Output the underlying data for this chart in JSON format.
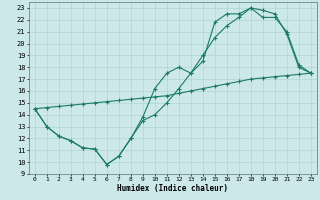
{
  "title": "",
  "xlabel": "Humidex (Indice chaleur)",
  "bg_color": "#cce8e8",
  "line_color": "#1a7a6a",
  "grid_color": "#a8d0d0",
  "xlim": [
    -0.5,
    23.5
  ],
  "ylim": [
    9,
    23.5
  ],
  "xticks": [
    0,
    1,
    2,
    3,
    4,
    5,
    6,
    7,
    8,
    9,
    10,
    11,
    12,
    13,
    14,
    15,
    16,
    17,
    18,
    19,
    20,
    21,
    22,
    23
  ],
  "yticks": [
    9,
    10,
    11,
    12,
    13,
    14,
    15,
    16,
    17,
    18,
    19,
    20,
    21,
    22,
    23
  ],
  "line1_x": [
    0,
    1,
    2,
    3,
    4,
    5,
    6,
    7,
    8,
    9,
    10,
    11,
    12,
    13,
    14,
    15,
    16,
    17,
    18,
    19,
    20,
    21,
    22,
    23
  ],
  "line1_y": [
    14.5,
    13.0,
    12.2,
    11.8,
    11.2,
    11.1,
    9.8,
    10.5,
    12.0,
    13.5,
    14.0,
    15.0,
    16.2,
    17.5,
    19.0,
    20.5,
    21.5,
    22.2,
    23.0,
    22.8,
    22.5,
    20.8,
    18.0,
    17.5
  ],
  "line2_x": [
    0,
    1,
    2,
    3,
    4,
    5,
    6,
    7,
    8,
    9,
    10,
    11,
    12,
    13,
    14,
    15,
    16,
    17,
    18,
    19,
    20,
    21,
    22,
    23
  ],
  "line2_y": [
    14.5,
    13.0,
    12.2,
    11.8,
    11.2,
    11.1,
    9.8,
    10.5,
    12.0,
    13.8,
    16.2,
    17.5,
    18.0,
    17.5,
    18.5,
    21.8,
    22.5,
    22.5,
    23.0,
    22.2,
    22.2,
    21.0,
    18.2,
    17.5
  ],
  "line3_x": [
    0,
    1,
    2,
    3,
    4,
    5,
    6,
    7,
    8,
    9,
    10,
    11,
    12,
    13,
    14,
    15,
    16,
    17,
    18,
    19,
    20,
    21,
    22,
    23
  ],
  "line3_y": [
    14.5,
    14.6,
    14.7,
    14.8,
    14.9,
    15.0,
    15.1,
    15.2,
    15.3,
    15.4,
    15.5,
    15.6,
    15.8,
    16.0,
    16.2,
    16.4,
    16.6,
    16.8,
    17.0,
    17.1,
    17.2,
    17.3,
    17.4,
    17.5
  ]
}
